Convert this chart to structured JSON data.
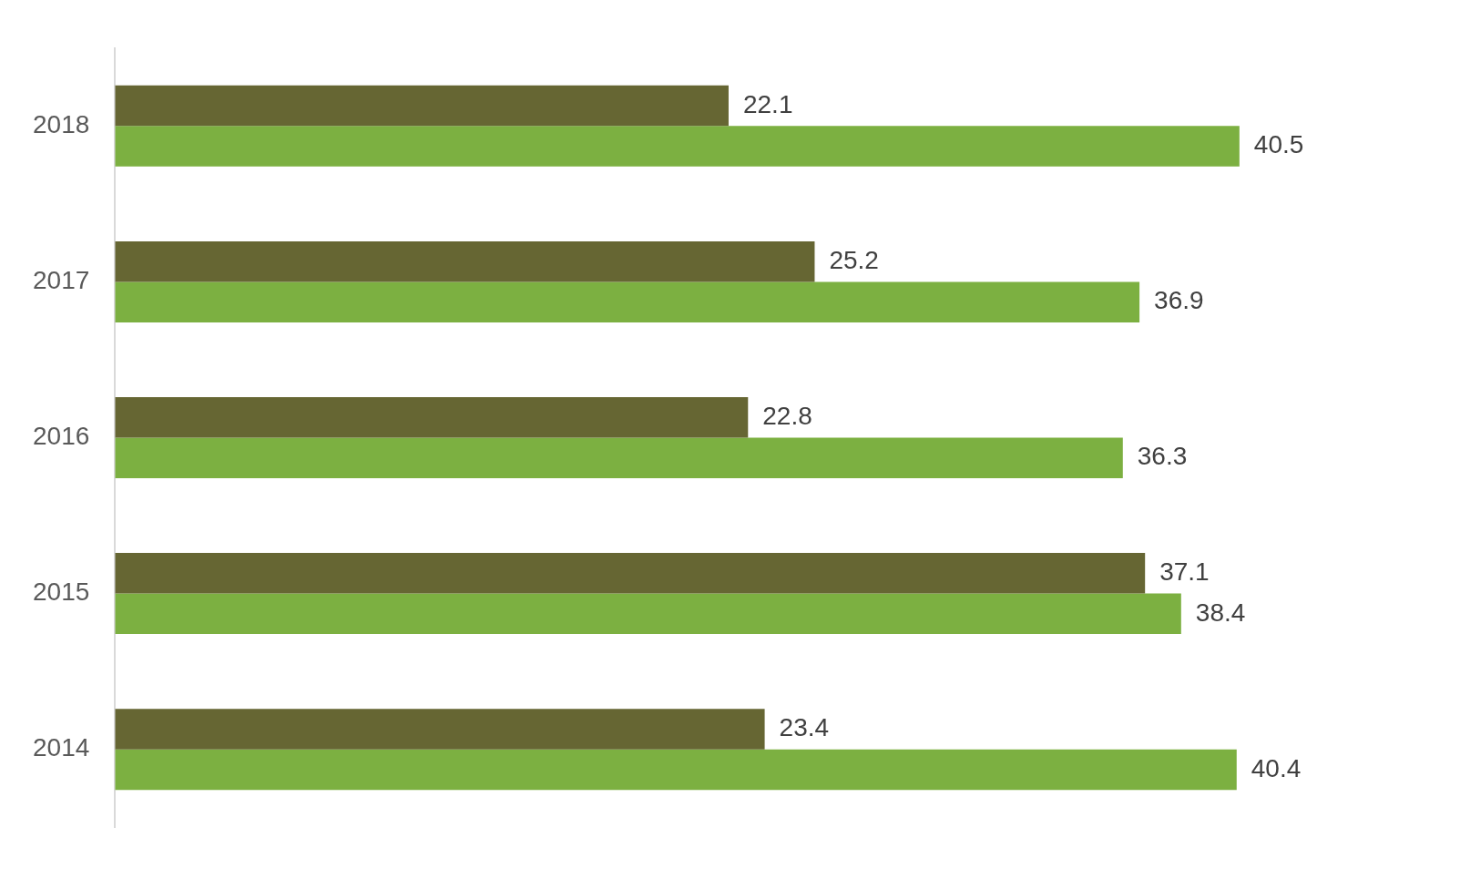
{
  "chart_data": {
    "type": "bar",
    "orientation": "horizontal",
    "categories": [
      "2018",
      "2017",
      "2016",
      "2015",
      "2014"
    ],
    "series": [
      {
        "color": "#666633",
        "values": [
          22.1,
          25.2,
          22.8,
          37.1,
          23.4
        ]
      },
      {
        "color": "#7cb041",
        "values": [
          40.5,
          36.9,
          36.3,
          38.4,
          40.4
        ]
      }
    ],
    "data_labels": true,
    "tick_labels": "y",
    "grid": false,
    "legend": false
  }
}
